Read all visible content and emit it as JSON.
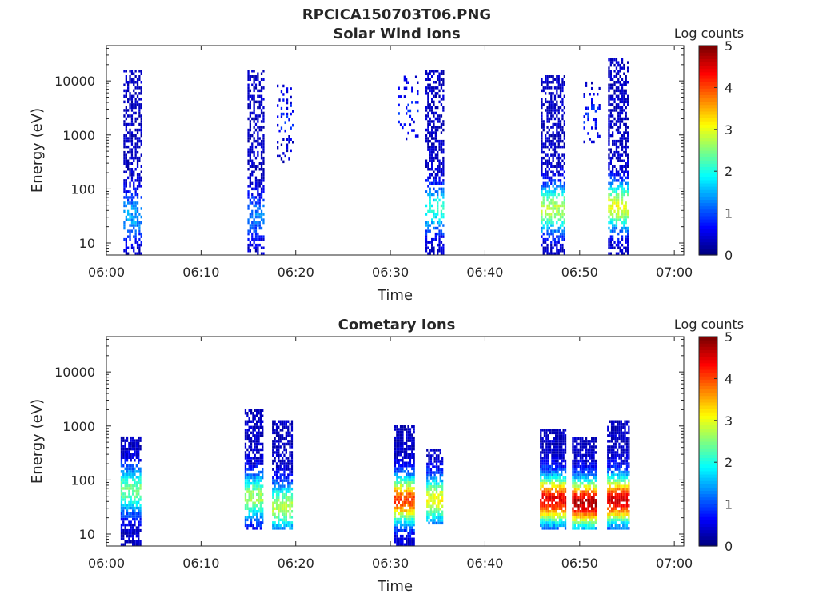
{
  "figure": {
    "title": "RPCICA150703T06.PNG"
  },
  "chart_data": [
    {
      "type": "heatmap",
      "title": "Solar Wind Ions",
      "xlabel": "Time",
      "ylabel": "Energy (eV)",
      "x_ticks": [
        "06:00",
        "06:10",
        "06:20",
        "06:30",
        "06:40",
        "06:50",
        "07:00"
      ],
      "xlim_minutes": [
        0,
        61
      ],
      "y_ticks": [
        "10",
        "100",
        "1000",
        "10000"
      ],
      "y_scale": "log",
      "ylim_ev": [
        6,
        45000
      ],
      "colorbar": {
        "label": "Log counts",
        "ticks": [
          "0",
          "1",
          "2",
          "3",
          "4",
          "5"
        ],
        "range": [
          0,
          5
        ],
        "colormap": "jet"
      },
      "bursts": [
        {
          "t_start": 1.8,
          "t_end": 3.8,
          "e_min": 6,
          "e_max": 15000,
          "peak_ev": 30,
          "peak_log_counts": 1.2,
          "density": 0.55
        },
        {
          "t_start": 14.9,
          "t_end": 16.5,
          "e_min": 6,
          "e_max": 15000,
          "peak_ev": 30,
          "peak_log_counts": 1.0,
          "density": 0.55
        },
        {
          "t_start": 18.0,
          "t_end": 19.6,
          "e_min": 300,
          "e_max": 8000,
          "peak_ev": 2000,
          "peak_log_counts": 0.5,
          "density": 0.2
        },
        {
          "t_start": 30.8,
          "t_end": 33.0,
          "e_min": 800,
          "e_max": 12000,
          "peak_ev": 3000,
          "peak_log_counts": 0.5,
          "density": 0.2
        },
        {
          "t_start": 33.7,
          "t_end": 35.6,
          "e_min": 6,
          "e_max": 15000,
          "peak_ev": 40,
          "peak_log_counts": 1.8,
          "density": 0.55
        },
        {
          "t_start": 45.9,
          "t_end": 48.5,
          "e_min": 6,
          "e_max": 12000,
          "peak_ev": 40,
          "peak_log_counts": 2.5,
          "density": 0.6
        },
        {
          "t_start": 50.4,
          "t_end": 52.1,
          "e_min": 700,
          "e_max": 9000,
          "peak_ev": 2000,
          "peak_log_counts": 0.5,
          "density": 0.2
        },
        {
          "t_start": 53.0,
          "t_end": 55.2,
          "e_min": 6,
          "e_max": 25000,
          "peak_ev": 45,
          "peak_log_counts": 2.8,
          "density": 0.6
        }
      ]
    },
    {
      "type": "heatmap",
      "title": "Cometary Ions",
      "xlabel": "Time",
      "ylabel": "Energy (eV)",
      "x_ticks": [
        "06:00",
        "06:10",
        "06:20",
        "06:30",
        "06:40",
        "06:50",
        "07:00"
      ],
      "xlim_minutes": [
        0,
        61
      ],
      "y_ticks": [
        "10",
        "100",
        "1000",
        "10000"
      ],
      "y_scale": "log",
      "ylim_ev": [
        6,
        45000
      ],
      "colorbar": {
        "label": "Log counts",
        "ticks": [
          "0",
          "1",
          "2",
          "3",
          "4",
          "5"
        ],
        "range": [
          0,
          5
        ],
        "colormap": "jet"
      },
      "bursts": [
        {
          "t_start": 1.5,
          "t_end": 3.6,
          "e_min": 6,
          "e_max": 600,
          "peak_ev": 60,
          "peak_log_counts": 2.2,
          "density": 0.75
        },
        {
          "t_start": 14.6,
          "t_end": 16.5,
          "e_min": 12,
          "e_max": 2000,
          "peak_ev": 45,
          "peak_log_counts": 2.4,
          "density": 0.75
        },
        {
          "t_start": 17.5,
          "t_end": 19.6,
          "e_min": 12,
          "e_max": 1200,
          "peak_ev": 30,
          "peak_log_counts": 2.5,
          "density": 0.75
        },
        {
          "t_start": 30.4,
          "t_end": 32.6,
          "e_min": 6,
          "e_max": 1000,
          "peak_ev": 40,
          "peak_log_counts": 3.8,
          "density": 0.8
        },
        {
          "t_start": 33.8,
          "t_end": 35.6,
          "e_min": 15,
          "e_max": 350,
          "peak_ev": 40,
          "peak_log_counts": 2.8,
          "density": 0.75
        },
        {
          "t_start": 45.8,
          "t_end": 48.5,
          "e_min": 12,
          "e_max": 800,
          "peak_ev": 40,
          "peak_log_counts": 4.2,
          "density": 0.85
        },
        {
          "t_start": 49.2,
          "t_end": 51.8,
          "e_min": 12,
          "e_max": 600,
          "peak_ev": 35,
          "peak_log_counts": 4.5,
          "density": 0.85
        },
        {
          "t_start": 52.9,
          "t_end": 55.2,
          "e_min": 12,
          "e_max": 1200,
          "peak_ev": 40,
          "peak_log_counts": 4.3,
          "density": 0.85
        }
      ]
    }
  ]
}
